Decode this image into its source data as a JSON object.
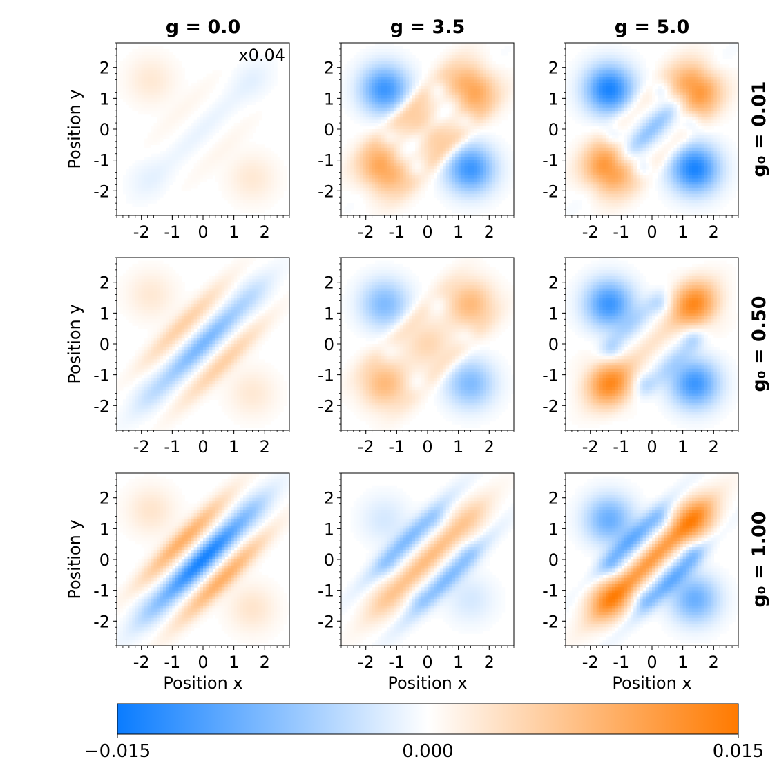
{
  "chart_data": {
    "type": "heatmap",
    "description_grid": "3x3 panels",
    "column_titles": [
      "g = 0.0",
      "g = 3.5",
      "g = 5.0"
    ],
    "row_titles": [
      "g₀ = 0.01",
      "g₀ = 0.50",
      "g₀ = 1.00"
    ],
    "xlabel": "Position x",
    "ylabel": "Position y",
    "xlim": [
      -2.8,
      2.8
    ],
    "ylim": [
      -2.8,
      2.8
    ],
    "tick_values": [
      -2,
      -1,
      0,
      1,
      2
    ],
    "tick_labels": [
      "-2",
      "-1",
      "0",
      "1",
      "2"
    ],
    "scale_annotation": "x0.04",
    "colorbar": {
      "min": -0.015,
      "max": 0.015,
      "tick_labels": [
        "−0.015",
        "0.000",
        "0.015"
      ],
      "negative_color": "#0a7cff",
      "zero_color": "#ffffff",
      "positive_color": "#ff7a00"
    },
    "panels": [
      {
        "row": 0,
        "col": 0,
        "g": 0.0,
        "g0": 0.01,
        "diag": 0.09,
        "corner": 0.0,
        "cornerAmp": 0.0,
        "inner": 0.06,
        "bump": 0.0,
        "arms": 0.0,
        "tiltAmp": 0.3
      },
      {
        "row": 0,
        "col": 1,
        "g": 3.5,
        "g0": 0.01,
        "diag": 0.35,
        "corner": 1.0,
        "cornerAmp": 0.85,
        "inner": 0.3,
        "bump": 0.55,
        "arms": 0.45,
        "tiltAmp": 0.0
      },
      {
        "row": 0,
        "col": 2,
        "g": 5.0,
        "g0": 0.01,
        "diag": 0.45,
        "corner": 1.0,
        "cornerAmp": 1.0,
        "inner": 0.2,
        "bump": 0.0,
        "arms": 0.55,
        "tiltAmp": 0.0
      },
      {
        "row": 1,
        "col": 0,
        "g": 0.0,
        "g0": 0.5,
        "diag": 0.55,
        "corner": 0.0,
        "cornerAmp": 0.0,
        "inner": 0.35,
        "bump": 0.0,
        "arms": 0.0,
        "tiltAmp": 0.3
      },
      {
        "row": 1,
        "col": 1,
        "g": 3.5,
        "g0": 0.5,
        "diag": 0.0,
        "corner": 1.0,
        "cornerAmp": 0.55,
        "inner": 0.2,
        "bump": 0.3,
        "arms": 0.3,
        "tiltAmp": 0.0
      },
      {
        "row": 1,
        "col": 2,
        "g": 5.0,
        "g0": 0.5,
        "diag": -0.2,
        "corner": 1.0,
        "cornerAmp": 0.85,
        "inner": 0.2,
        "bump": 0.0,
        "arms": 0.45,
        "tiltAmp": 0.0
      },
      {
        "row": 2,
        "col": 0,
        "g": 0.0,
        "g0": 1.0,
        "diag": 0.95,
        "corner": 0.0,
        "cornerAmp": 0.0,
        "inner": 0.6,
        "bump": 0.0,
        "arms": 0.0,
        "tiltAmp": 0.35
      },
      {
        "row": 2,
        "col": 1,
        "g": 3.5,
        "g0": 1.0,
        "diag": -0.5,
        "corner": 1.0,
        "cornerAmp": 0.18,
        "inner": 0.5,
        "bump": 0.0,
        "arms": 0.2,
        "tiltAmp": 0.0
      },
      {
        "row": 2,
        "col": 2,
        "g": 5.0,
        "g0": 1.0,
        "diag": -0.75,
        "corner": 1.0,
        "cornerAmp": 0.65,
        "inner": 0.55,
        "bump": 0.0,
        "arms": 0.35,
        "tiltAmp": 0.0
      }
    ]
  }
}
